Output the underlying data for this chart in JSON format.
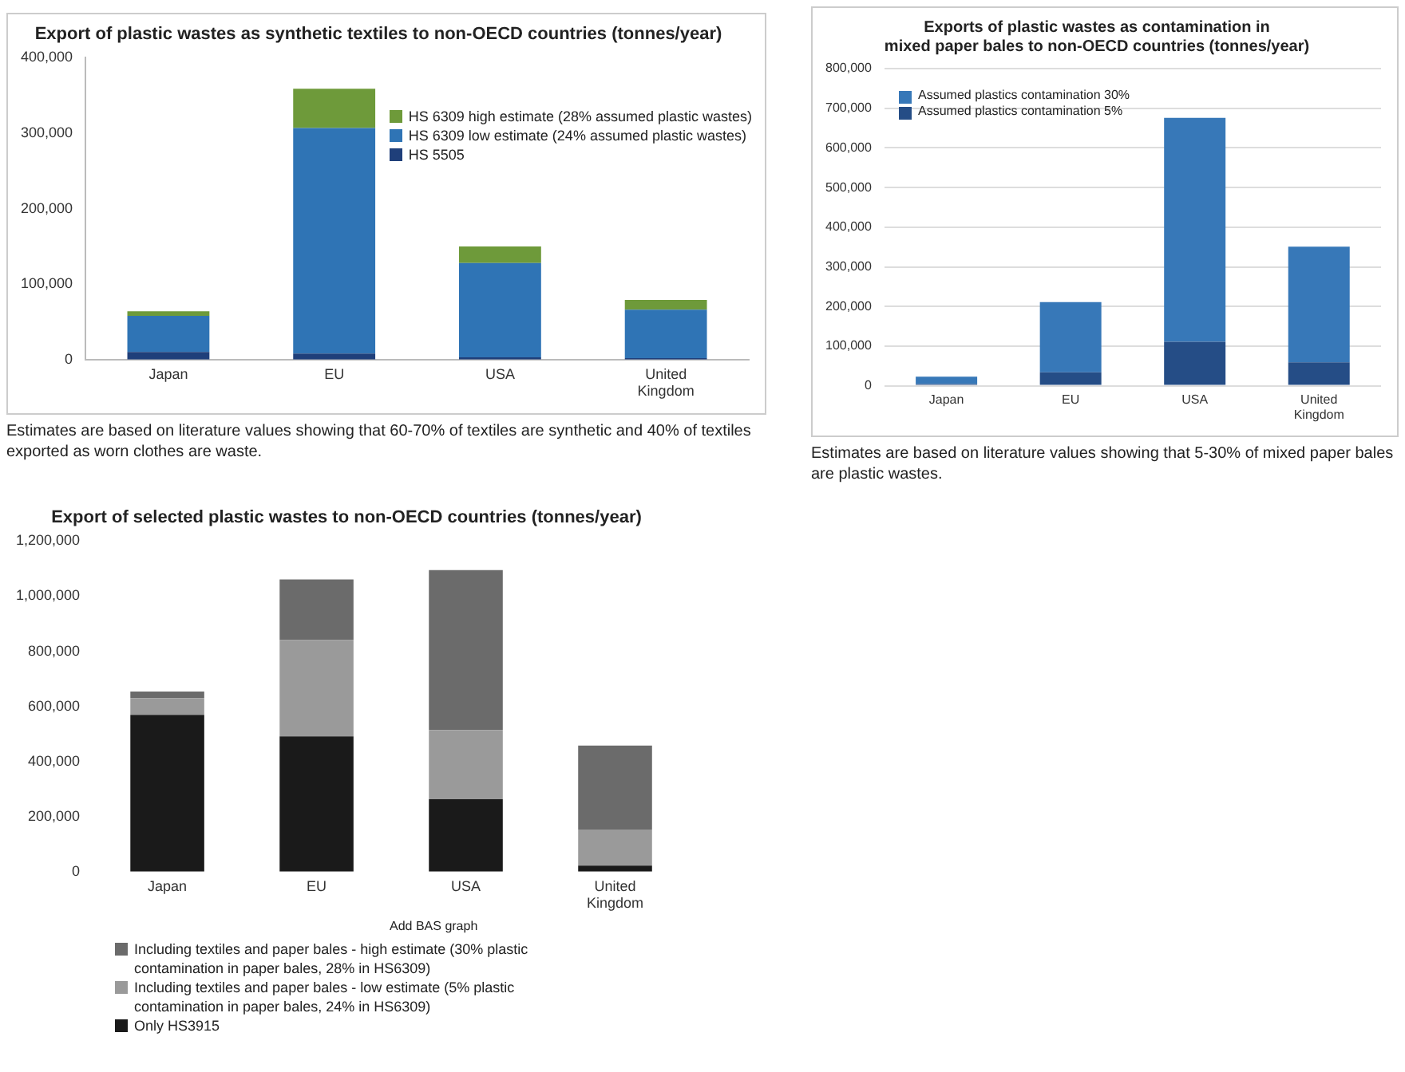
{
  "chart_data": [
    {
      "type": "bar",
      "stacked": true,
      "title": "Export of plastic wastes as synthetic textiles to non-OECD countries (tonnes/year)",
      "categories": [
        "Japan",
        "EU",
        "USA",
        "United Kingdom"
      ],
      "series": [
        {
          "name": "HS 5505",
          "color": "#1f3f7a",
          "values": [
            10000,
            8000,
            3000,
            2000
          ]
        },
        {
          "name": "HS 6309 low estimate (24% assumed plastic wastes)",
          "color": "#2f74b5",
          "values": [
            48000,
            299000,
            125000,
            64000
          ]
        },
        {
          "name": "HS 6309 high estimate (28% assumed plastic wastes)",
          "color": "#6e9a3a",
          "values": [
            6000,
            52000,
            22000,
            13000
          ]
        }
      ],
      "ylim": [
        0,
        400000
      ],
      "yticks": [
        {
          "value": 0,
          "label": "0"
        },
        {
          "value": 100000,
          "label": "100,000"
        },
        {
          "value": 200000,
          "label": "200,000"
        },
        {
          "value": 300000,
          "label": "300,000"
        },
        {
          "value": 400000,
          "label": "400,000"
        }
      ],
      "grid": false,
      "legend": "top right",
      "annotations": [
        "Estimates are based on literature values showing that 60-70% of textiles are synthetic and 40% of textiles exported as worn clothes are waste."
      ]
    },
    {
      "type": "bar",
      "stacked": true,
      "title": "Exports of plastic wastes as contamination in mixed paper bales to non-OECD countries (tonnes/year)",
      "categories": [
        "Japan",
        "EU",
        "USA",
        "United Kingdom"
      ],
      "series": [
        {
          "name": "Assumed plastics contamination 5%",
          "color": "#254d86",
          "values": [
            4000,
            34000,
            111000,
            59000
          ]
        },
        {
          "name": "Assumed plastics contamination 30%",
          "color": "#3778b8",
          "values": [
            19000,
            177000,
            565000,
            292000
          ]
        }
      ],
      "ylim": [
        0,
        800000
      ],
      "yticks": [
        {
          "value": 0,
          "label": "0"
        },
        {
          "value": 100000,
          "label": "100,000"
        },
        {
          "value": 200000,
          "label": "200,000"
        },
        {
          "value": 300000,
          "label": "300,000"
        },
        {
          "value": 400000,
          "label": "400,000"
        },
        {
          "value": 500000,
          "label": "500,000"
        },
        {
          "value": 600000,
          "label": "600,000"
        },
        {
          "value": 700000,
          "label": "700,000"
        },
        {
          "value": 800000,
          "label": "800,000"
        }
      ],
      "grid": "y",
      "legend": "top left",
      "annotations": [
        "Estimates are based on literature values showing that 5-30% of mixed paper bales are plastic wastes."
      ]
    },
    {
      "type": "bar",
      "stacked": true,
      "title": "Export of selected plastic wastes to non-OECD countries (tonnes/year)",
      "categories": [
        "Japan",
        "EU",
        "USA",
        "United Kingdom"
      ],
      "series": [
        {
          "name": "Only HS3915",
          "color": "#1a1a1a",
          "values": [
            569000,
            491000,
            263000,
            22000
          ]
        },
        {
          "name": "Including textiles and paper bales - low estimate (5% plastic contamination in paper bales, 24% in HS6309)",
          "color": "#9a9a9a",
          "values": [
            61000,
            350000,
            251000,
            131000
          ]
        },
        {
          "name": "Including textiles and paper bales - high estimate (30% plastic contamination in paper bales, 28% in HS6309)",
          "color": "#6b6b6b",
          "values": [
            24000,
            220000,
            581000,
            305000
          ]
        }
      ],
      "ylim": [
        0,
        1200000
      ],
      "yticks": [
        {
          "value": 0,
          "label": "0"
        },
        {
          "value": 200000,
          "label": "200,000"
        },
        {
          "value": 400000,
          "label": "400,000"
        },
        {
          "value": 600000,
          "label": "600,000"
        },
        {
          "value": 800000,
          "label": "800,000"
        },
        {
          "value": 1000000,
          "label": "1,000,000"
        },
        {
          "value": 1200000,
          "label": "1,200,000"
        }
      ],
      "grid": false,
      "legend": "bottom",
      "annotations": [
        "Add BAS graph"
      ]
    }
  ]
}
